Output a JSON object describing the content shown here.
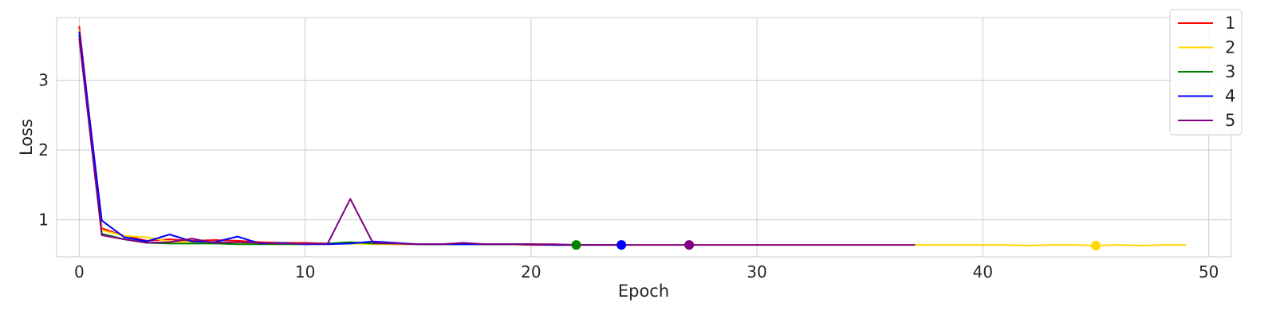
{
  "chart_data": {
    "type": "line",
    "title": "",
    "xlabel": "Epoch",
    "ylabel": "Loss",
    "xlim": [
      -1,
      51
    ],
    "ylim": [
      0.47,
      3.9
    ],
    "xticks": [
      0,
      10,
      20,
      30,
      40,
      50
    ],
    "yticks": [
      1,
      2,
      3
    ],
    "grid": true,
    "legend_position": "top-right",
    "series": [
      {
        "name": "1",
        "color": "#ff0000",
        "y": [
          3.78,
          0.88,
          0.77,
          0.7,
          0.72,
          0.7,
          0.71,
          0.7,
          0.68,
          0.67,
          0.67,
          0.66,
          0.66,
          0.66,
          0.65,
          0.65,
          0.65,
          0.65,
          0.65,
          0.65,
          0.64,
          0.64,
          0.64
        ],
        "marker": {
          "x": 22,
          "y": 0.64,
          "show": false
        }
      },
      {
        "name": "2",
        "color": "#ffd700",
        "y": [
          3.72,
          0.85,
          0.77,
          0.75,
          0.69,
          0.68,
          0.68,
          0.67,
          0.67,
          0.66,
          0.66,
          0.66,
          0.66,
          0.65,
          0.65,
          0.65,
          0.65,
          0.65,
          0.65,
          0.65,
          0.65,
          0.65,
          0.64,
          0.64,
          0.64,
          0.64,
          0.64,
          0.64,
          0.64,
          0.64,
          0.64,
          0.64,
          0.64,
          0.64,
          0.64,
          0.64,
          0.64,
          0.64,
          0.64,
          0.64,
          0.64,
          0.64,
          0.63,
          0.64,
          0.64,
          0.63,
          0.64,
          0.63,
          0.64,
          0.64
        ],
        "marker": {
          "x": 45,
          "y": 0.63,
          "show": true
        }
      },
      {
        "name": "3",
        "color": "#008000",
        "y": [
          3.65,
          0.8,
          0.72,
          0.67,
          0.66,
          0.66,
          0.66,
          0.65,
          0.65,
          0.65,
          0.65,
          0.66,
          0.68,
          0.66,
          0.66,
          0.65,
          0.65,
          0.65,
          0.65,
          0.65,
          0.65,
          0.64,
          0.64
        ],
        "marker": {
          "x": 22,
          "y": 0.64,
          "show": true
        }
      },
      {
        "name": "4",
        "color": "#0000ff",
        "y": [
          3.7,
          0.99,
          0.75,
          0.69,
          0.79,
          0.69,
          0.68,
          0.76,
          0.66,
          0.67,
          0.65,
          0.65,
          0.66,
          0.69,
          0.67,
          0.65,
          0.65,
          0.65,
          0.65,
          0.65,
          0.65,
          0.64,
          0.64,
          0.64,
          0.64
        ],
        "marker": {
          "x": 24,
          "y": 0.64,
          "show": true
        }
      },
      {
        "name": "5",
        "color": "#800080",
        "y": [
          3.6,
          0.78,
          0.72,
          0.67,
          0.68,
          0.73,
          0.67,
          0.68,
          0.67,
          0.66,
          0.66,
          0.66,
          1.3,
          0.67,
          0.66,
          0.65,
          0.65,
          0.67,
          0.65,
          0.65,
          0.65,
          0.65,
          0.64,
          0.64,
          0.64,
          0.64,
          0.64,
          0.64,
          0.64,
          0.64,
          0.64,
          0.64,
          0.64,
          0.64,
          0.64,
          0.64,
          0.64,
          0.64
        ],
        "marker": {
          "x": 27,
          "y": 0.64,
          "show": true
        }
      }
    ]
  }
}
